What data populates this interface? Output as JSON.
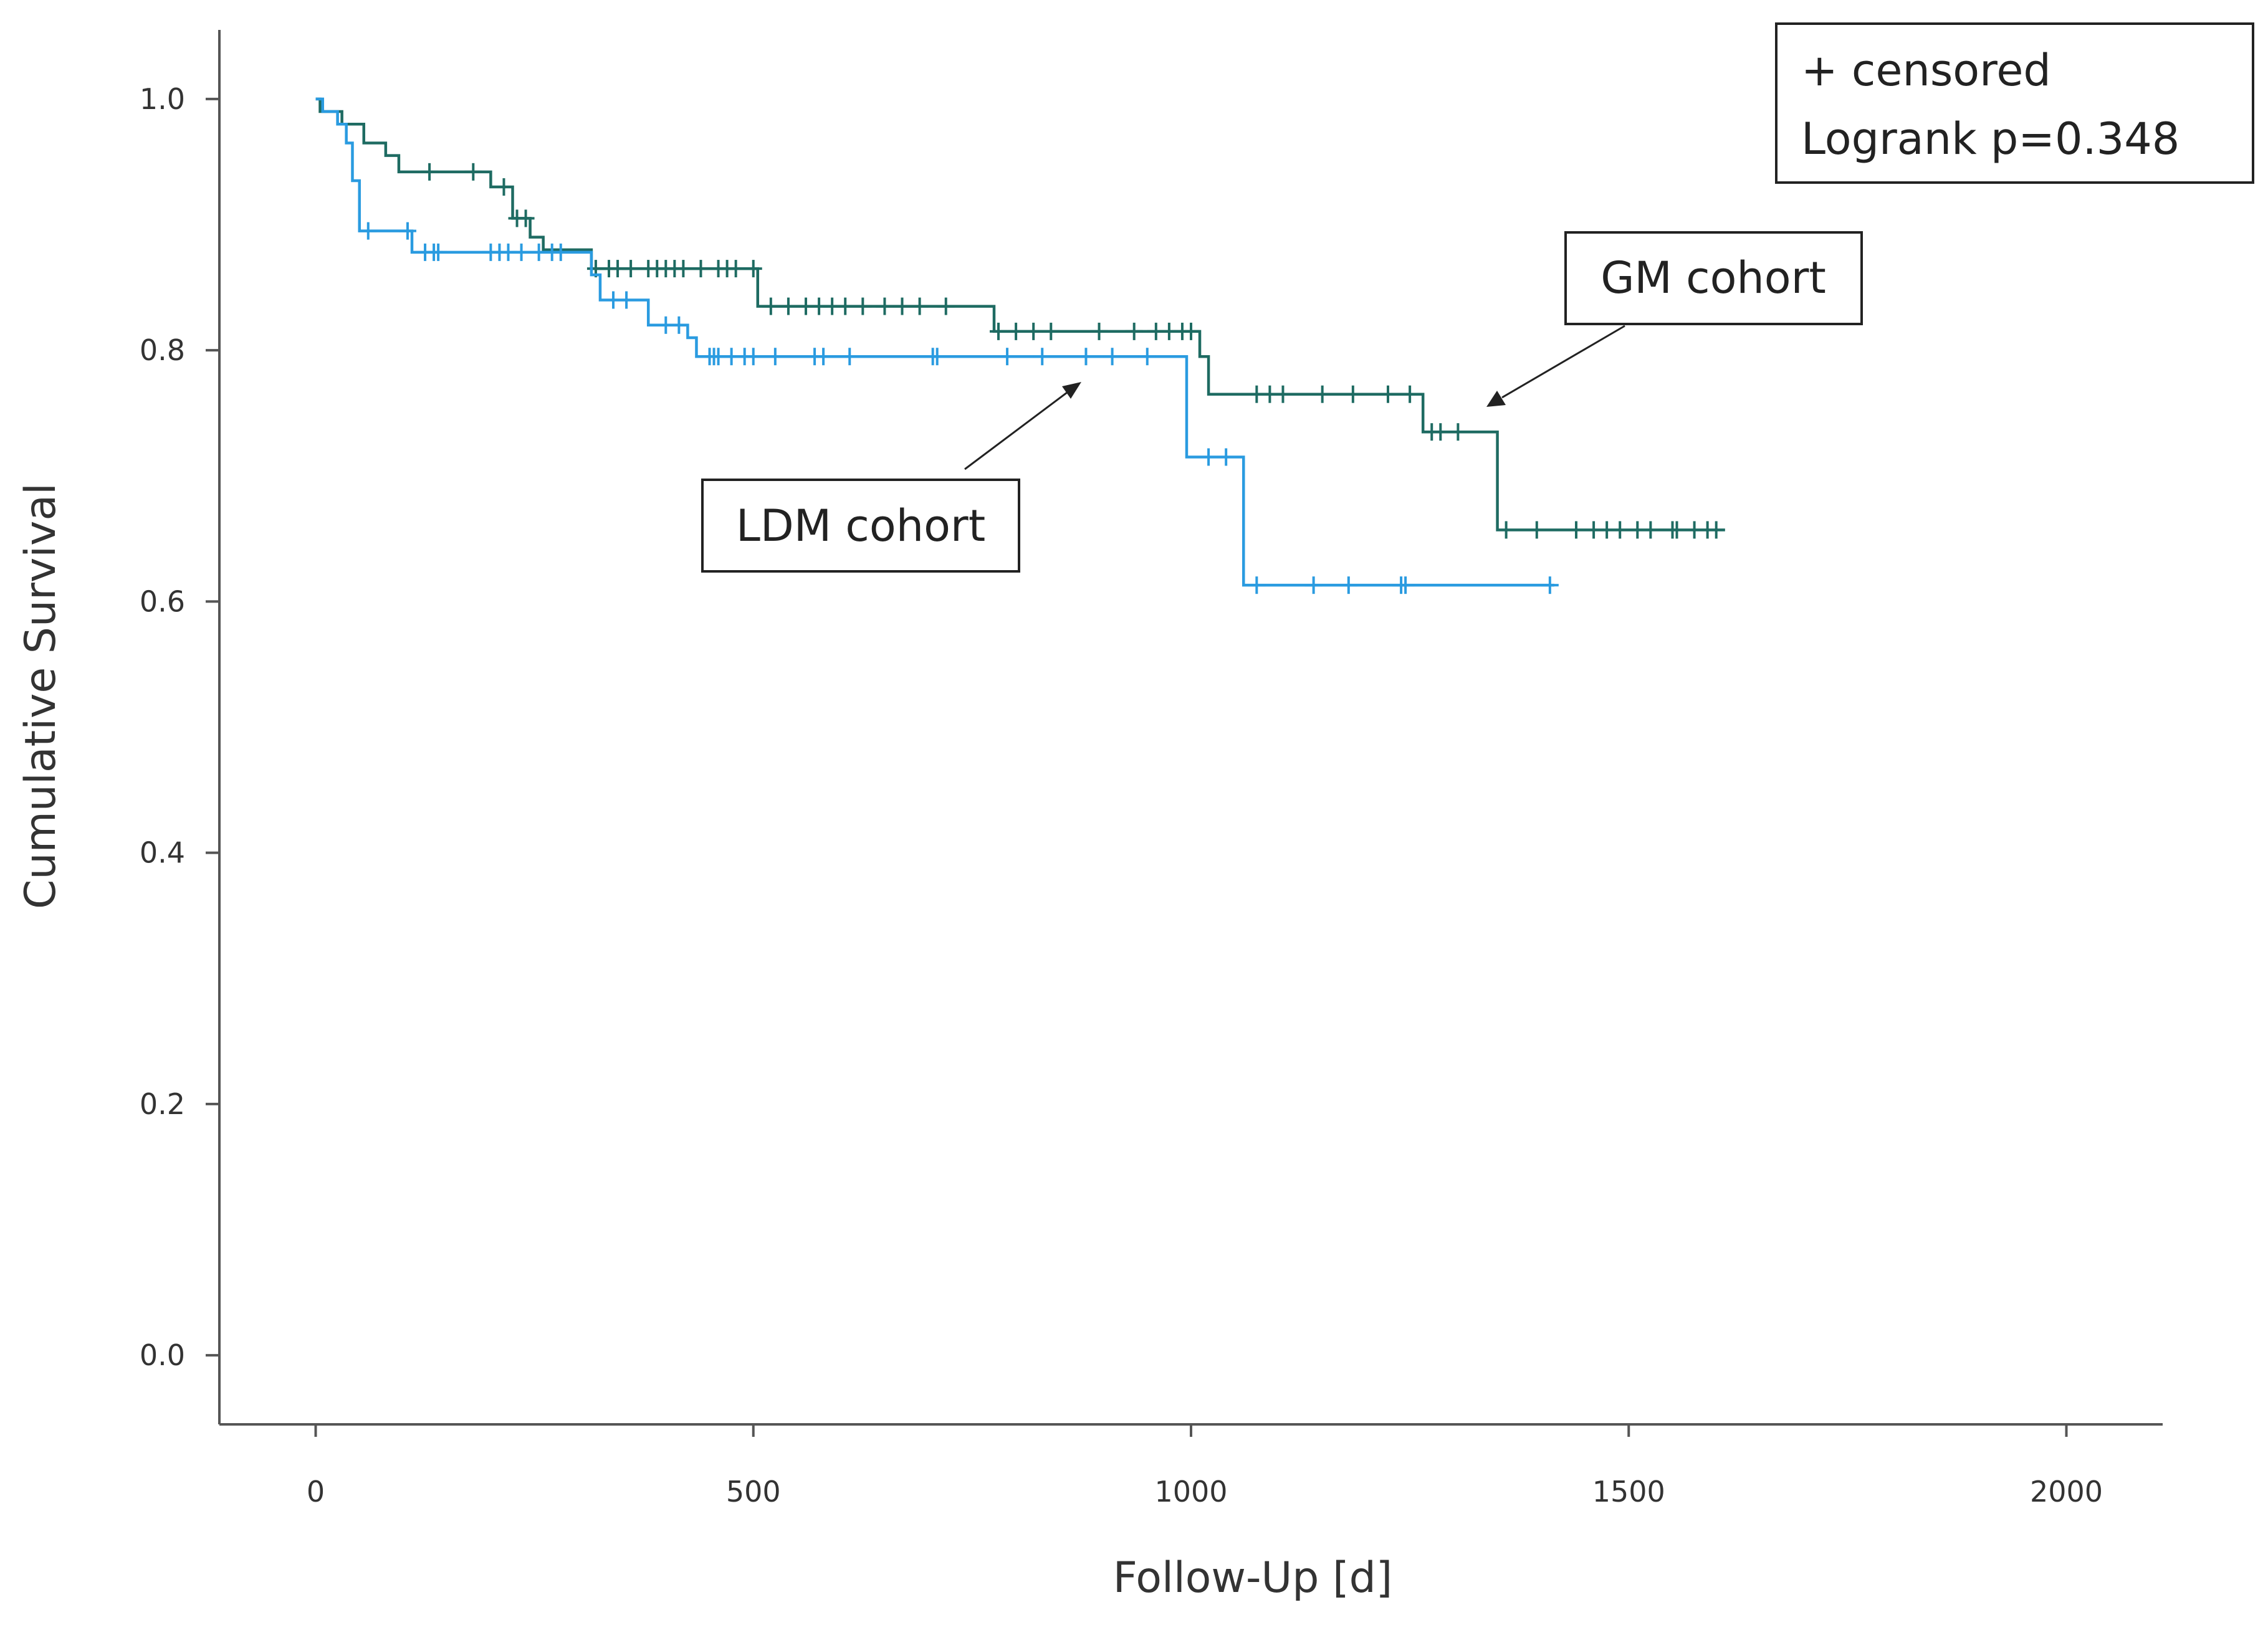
{
  "chart_data": {
    "type": "line",
    "subtype": "kaplan-meier",
    "title": "",
    "xlabel": "Follow-Up [d]",
    "ylabel": "Cumulative Survival",
    "xlim": [
      -110,
      2110
    ],
    "ylim": [
      -0.055,
      1.055
    ],
    "xticks": [
      0,
      500,
      1000,
      1500,
      2000
    ],
    "yticks": [
      0.0,
      0.2,
      0.4,
      0.6,
      0.8,
      1.0
    ],
    "xtick_labels": [
      "0",
      "500",
      "1000",
      "1500",
      "2000"
    ],
    "ytick_labels": [
      "0.0",
      "0.2",
      "0.4",
      "0.6",
      "0.8",
      "1.0"
    ],
    "grid": false,
    "legend": {
      "line1": "+ censored",
      "line2": "Logrank p=0.348",
      "position": "top-right"
    },
    "annotations": [
      {
        "label": "GM cohort",
        "series": "GM cohort",
        "target": [
          1340,
          0.765
        ]
      },
      {
        "label": "LDM cohort",
        "series": "LDM cohort",
        "target": [
          870,
          0.785
        ]
      }
    ],
    "series": [
      {
        "name": "GM cohort",
        "color": "#1e6b62",
        "steps": [
          [
            0,
            1.0
          ],
          [
            5,
            0.99
          ],
          [
            30,
            0.98
          ],
          [
            55,
            0.965
          ],
          [
            80,
            0.955
          ],
          [
            95,
            0.942
          ],
          [
            200,
            0.93
          ],
          [
            225,
            0.905
          ],
          [
            245,
            0.89
          ],
          [
            260,
            0.88
          ],
          [
            315,
            0.865
          ],
          [
            505,
            0.835
          ],
          [
            775,
            0.815
          ],
          [
            1010,
            0.795
          ],
          [
            1020,
            0.765
          ],
          [
            1265,
            0.735
          ],
          [
            1350,
            0.657
          ]
        ],
        "end": 1610,
        "censored": [
          [
            130,
            0.942
          ],
          [
            180,
            0.942
          ],
          [
            215,
            0.93
          ],
          [
            230,
            0.905
          ],
          [
            240,
            0.905
          ],
          [
            320,
            0.865
          ],
          [
            335,
            0.865
          ],
          [
            345,
            0.865
          ],
          [
            360,
            0.865
          ],
          [
            380,
            0.865
          ],
          [
            390,
            0.865
          ],
          [
            400,
            0.865
          ],
          [
            410,
            0.865
          ],
          [
            420,
            0.865
          ],
          [
            440,
            0.865
          ],
          [
            460,
            0.865
          ],
          [
            470,
            0.865
          ],
          [
            480,
            0.865
          ],
          [
            500,
            0.865
          ],
          [
            520,
            0.835
          ],
          [
            540,
            0.835
          ],
          [
            560,
            0.835
          ],
          [
            575,
            0.835
          ],
          [
            590,
            0.835
          ],
          [
            605,
            0.835
          ],
          [
            625,
            0.835
          ],
          [
            650,
            0.835
          ],
          [
            670,
            0.835
          ],
          [
            690,
            0.835
          ],
          [
            720,
            0.835
          ],
          [
            780,
            0.815
          ],
          [
            800,
            0.815
          ],
          [
            820,
            0.815
          ],
          [
            840,
            0.815
          ],
          [
            895,
            0.815
          ],
          [
            935,
            0.815
          ],
          [
            960,
            0.815
          ],
          [
            975,
            0.815
          ],
          [
            990,
            0.815
          ],
          [
            1000,
            0.815
          ],
          [
            1075,
            0.765
          ],
          [
            1090,
            0.765
          ],
          [
            1105,
            0.765
          ],
          [
            1150,
            0.765
          ],
          [
            1185,
            0.765
          ],
          [
            1225,
            0.765
          ],
          [
            1250,
            0.765
          ],
          [
            1275,
            0.735
          ],
          [
            1285,
            0.735
          ],
          [
            1305,
            0.735
          ],
          [
            1360,
            0.657
          ],
          [
            1395,
            0.657
          ],
          [
            1440,
            0.657
          ],
          [
            1460,
            0.657
          ],
          [
            1475,
            0.657
          ],
          [
            1490,
            0.657
          ],
          [
            1510,
            0.657
          ],
          [
            1525,
            0.657
          ],
          [
            1550,
            0.657
          ],
          [
            1555,
            0.657
          ],
          [
            1575,
            0.657
          ],
          [
            1590,
            0.657
          ],
          [
            1600,
            0.657
          ]
        ]
      },
      {
        "name": "LDM cohort",
        "color": "#2a9be0",
        "steps": [
          [
            0,
            1.0
          ],
          [
            8,
            0.99
          ],
          [
            25,
            0.98
          ],
          [
            35,
            0.965
          ],
          [
            42,
            0.935
          ],
          [
            50,
            0.895
          ],
          [
            110,
            0.878
          ],
          [
            315,
            0.86
          ],
          [
            325,
            0.84
          ],
          [
            380,
            0.82
          ],
          [
            425,
            0.81
          ],
          [
            435,
            0.795
          ],
          [
            995,
            0.715
          ],
          [
            1060,
            0.613
          ]
        ],
        "end": 1415,
        "censored": [
          [
            60,
            0.895
          ],
          [
            105,
            0.895
          ],
          [
            125,
            0.878
          ],
          [
            135,
            0.878
          ],
          [
            140,
            0.878
          ],
          [
            200,
            0.878
          ],
          [
            210,
            0.878
          ],
          [
            220,
            0.878
          ],
          [
            235,
            0.878
          ],
          [
            255,
            0.878
          ],
          [
            270,
            0.878
          ],
          [
            280,
            0.878
          ],
          [
            340,
            0.84
          ],
          [
            355,
            0.84
          ],
          [
            400,
            0.82
          ],
          [
            415,
            0.82
          ],
          [
            450,
            0.795
          ],
          [
            455,
            0.795
          ],
          [
            460,
            0.795
          ],
          [
            475,
            0.795
          ],
          [
            490,
            0.795
          ],
          [
            500,
            0.795
          ],
          [
            525,
            0.795
          ],
          [
            570,
            0.795
          ],
          [
            580,
            0.795
          ],
          [
            610,
            0.795
          ],
          [
            705,
            0.795
          ],
          [
            710,
            0.795
          ],
          [
            790,
            0.795
          ],
          [
            830,
            0.795
          ],
          [
            880,
            0.795
          ],
          [
            910,
            0.795
          ],
          [
            950,
            0.795
          ],
          [
            1020,
            0.715
          ],
          [
            1040,
            0.715
          ],
          [
            1075,
            0.613
          ],
          [
            1140,
            0.613
          ],
          [
            1180,
            0.613
          ],
          [
            1240,
            0.613
          ],
          [
            1245,
            0.613
          ],
          [
            1410,
            0.613
          ]
        ]
      }
    ]
  }
}
